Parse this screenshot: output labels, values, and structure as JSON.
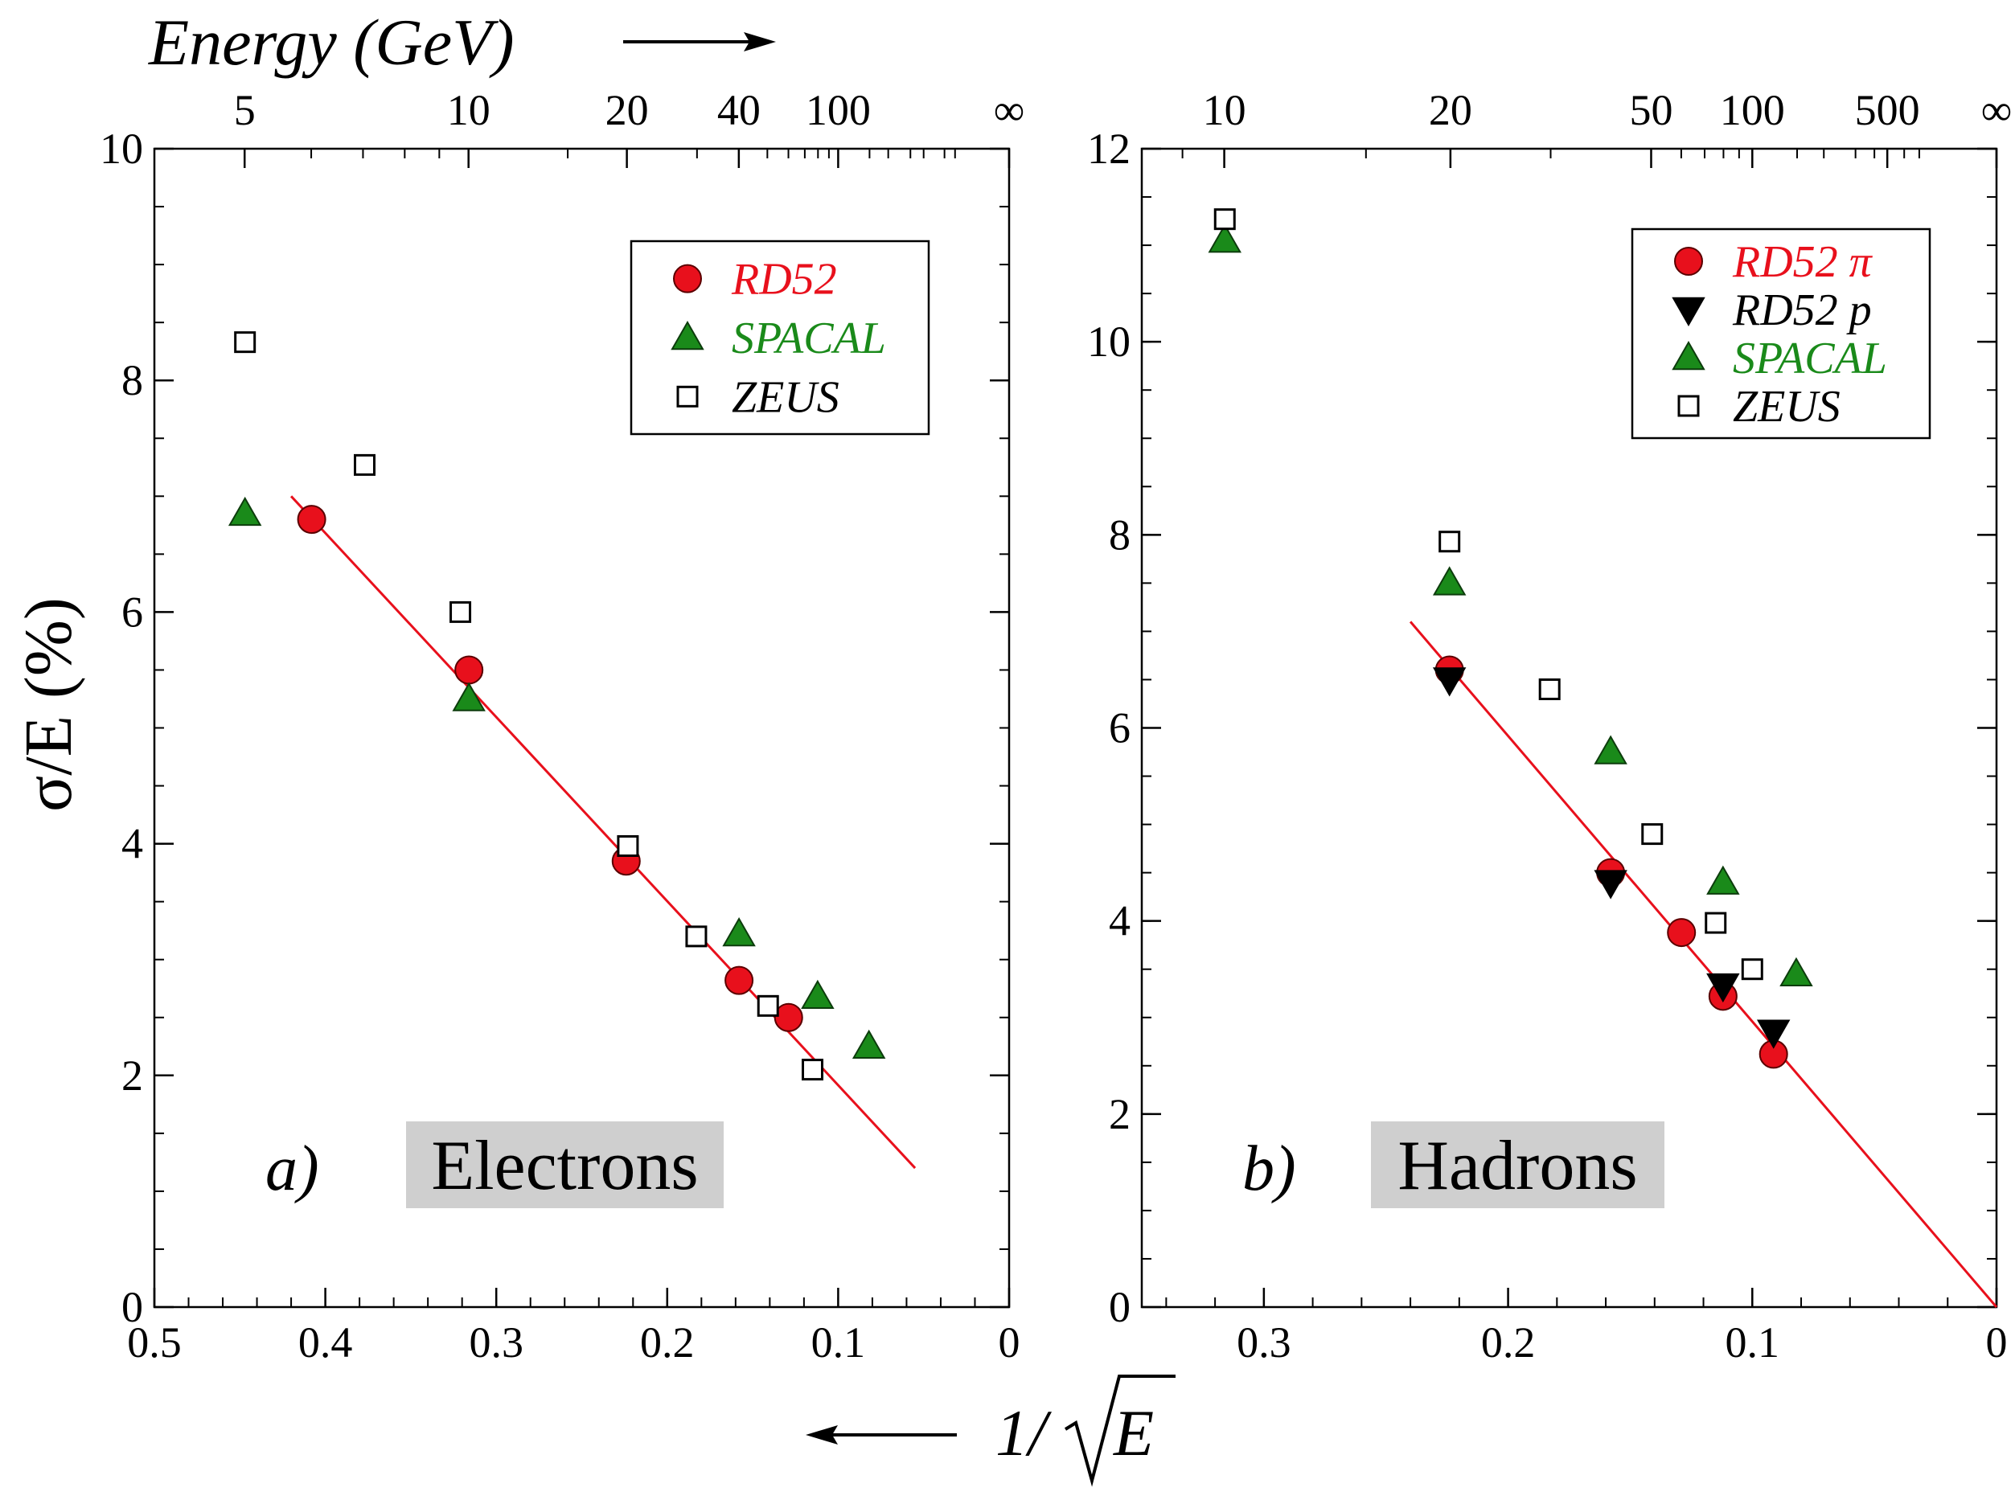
{
  "figure": {
    "top_axis_title": "Energy (GeV)",
    "y_axis_title": "σ/E (%)",
    "bottom_axis_title_num": "1/",
    "bottom_axis_title_var": "E"
  },
  "colors": {
    "RD52": "#e8101c",
    "RD52_p": "#000000",
    "SPACAL": "#1a8a1a",
    "ZEUS": "#000000",
    "fit": "#e8101c",
    "panel_label_bg": "#cfcfcf"
  },
  "chart_data": [
    {
      "type": "scatter",
      "panel_letter": "a)",
      "panel_title": "Electrons",
      "xlabel": "1/√E",
      "ylabel": "σ/E (%)",
      "xlim": [
        0.5,
        0
      ],
      "ylim": [
        0,
        10
      ],
      "x_ticks": [
        "0.5",
        "0.4",
        "0.3",
        "0.2",
        "0.1",
        "0"
      ],
      "y_ticks": [
        "0",
        "2",
        "4",
        "6",
        "8",
        "10"
      ],
      "top_ticks": [
        {
          "label": "5",
          "energy": 5
        },
        {
          "label": "10",
          "energy": 10
        },
        {
          "label": "20",
          "energy": 20
        },
        {
          "label": "40",
          "energy": 40
        },
        {
          "label": "100",
          "energy": 100
        },
        {
          "label": "∞",
          "energy": null
        }
      ],
      "legend_position": "top-right",
      "legend": [
        {
          "name": "RD52",
          "marker": "circle",
          "color_key": "RD52"
        },
        {
          "name": "SPACAL",
          "marker": "triangle-up",
          "color_key": "SPACAL"
        },
        {
          "name": "ZEUS",
          "marker": "square-open",
          "color_key": "ZEUS"
        }
      ],
      "series": [
        {
          "name": "RD52",
          "marker": "circle",
          "color_key": "RD52",
          "x": [
            0.408,
            0.316,
            0.224,
            0.158,
            0.129
          ],
          "y": [
            6.8,
            5.5,
            3.85,
            2.82,
            2.5
          ]
        },
        {
          "name": "SPACAL",
          "marker": "triangle-up",
          "color_key": "SPACAL",
          "x": [
            0.447,
            0.316,
            0.158,
            0.112,
            0.082
          ],
          "y": [
            6.85,
            5.25,
            3.22,
            2.68,
            2.25
          ]
        },
        {
          "name": "ZEUS",
          "marker": "square-open",
          "color_key": "ZEUS",
          "x": [
            0.447,
            0.377,
            0.321,
            0.223,
            0.183,
            0.141,
            0.115
          ],
          "y": [
            8.33,
            7.27,
            6.0,
            3.98,
            3.2,
            2.6,
            2.05
          ]
        }
      ],
      "fit_line": {
        "x": [
          0.42,
          0.055
        ],
        "y": [
          7.0,
          1.2
        ]
      }
    },
    {
      "type": "scatter",
      "panel_letter": "b)",
      "panel_title": "Hadrons",
      "xlabel": "1/√E",
      "ylabel": "σ/E (%)",
      "xlim": [
        0.35,
        0
      ],
      "ylim": [
        0,
        12
      ],
      "x_ticks": [
        "0.3",
        "0.2",
        "0.1",
        "0"
      ],
      "y_ticks": [
        "0",
        "2",
        "4",
        "6",
        "8",
        "10",
        "12"
      ],
      "top_ticks": [
        {
          "label": "10",
          "energy": 10
        },
        {
          "label": "20",
          "energy": 20
        },
        {
          "label": "50",
          "energy": 50
        },
        {
          "label": "100",
          "energy": 100
        },
        {
          "label": "500",
          "energy": 500
        },
        {
          "label": "∞",
          "energy": null
        }
      ],
      "legend_position": "top-right",
      "legend": [
        {
          "name": "RD52 π",
          "marker": "circle",
          "color_key": "RD52"
        },
        {
          "name": "RD52 p",
          "marker": "triangle-down",
          "color_key": "RD52_p"
        },
        {
          "name": "SPACAL",
          "marker": "triangle-up",
          "color_key": "SPACAL"
        },
        {
          "name": "ZEUS",
          "marker": "square-open",
          "color_key": "ZEUS"
        }
      ],
      "series": [
        {
          "name": "RD52 π",
          "marker": "circle",
          "color_key": "RD52",
          "x": [
            0.224,
            0.158,
            0.129,
            0.112,
            0.0913
          ],
          "y": [
            6.6,
            4.5,
            3.88,
            3.22,
            2.62
          ]
        },
        {
          "name": "RD52 p",
          "marker": "triangle-down",
          "color_key": "RD52_p",
          "x": [
            0.224,
            0.158,
            0.112,
            0.0913
          ],
          "y": [
            6.5,
            4.4,
            3.33,
            2.85
          ]
        },
        {
          "name": "SPACAL",
          "marker": "triangle-up",
          "color_key": "SPACAL",
          "x": [
            0.316,
            0.224,
            0.158,
            0.112,
            0.082
          ],
          "y": [
            11.05,
            7.5,
            5.75,
            4.4,
            3.45
          ]
        },
        {
          "name": "ZEUS",
          "marker": "square-open",
          "color_key": "ZEUS",
          "x": [
            0.316,
            0.224,
            0.183,
            0.141,
            0.115,
            0.1
          ],
          "y": [
            11.27,
            7.93,
            6.4,
            4.9,
            3.98,
            3.5
          ]
        }
      ],
      "fit_line": {
        "x": [
          0.24,
          0.0
        ],
        "y": [
          7.1,
          0.0
        ]
      }
    }
  ]
}
